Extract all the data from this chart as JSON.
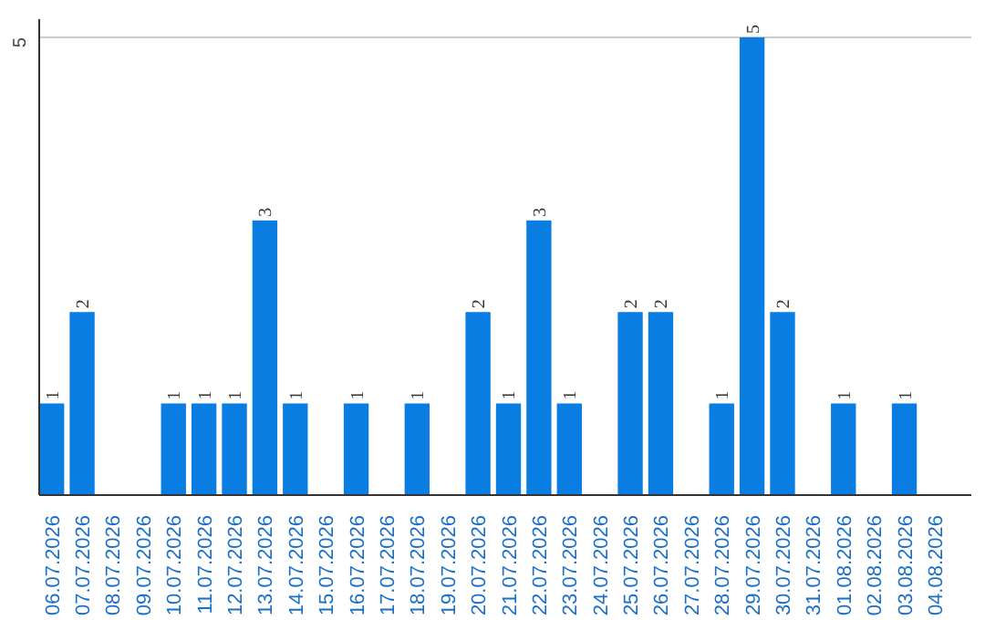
{
  "chart_data": {
    "type": "bar",
    "categories": [
      "06.07.2026",
      "07.07.2026",
      "08.07.2026",
      "09.07.2026",
      "10.07.2026",
      "11.07.2026",
      "12.07.2026",
      "13.07.2026",
      "14.07.2026",
      "15.07.2026",
      "16.07.2026",
      "17.07.2026",
      "18.07.2026",
      "19.07.2026",
      "20.07.2026",
      "21.07.2026",
      "22.07.2026",
      "23.07.2026",
      "24.07.2026",
      "25.07.2026",
      "26.07.2026",
      "27.07.2026",
      "28.07.2026",
      "29.07.2026",
      "30.07.2026",
      "31.07.2026",
      "01.08.2026",
      "02.08.2026",
      "03.08.2026",
      "04.08.2026"
    ],
    "values": [
      1,
      2,
      0,
      0,
      1,
      1,
      1,
      3,
      1,
      0,
      1,
      0,
      1,
      0,
      2,
      1,
      3,
      1,
      0,
      2,
      2,
      0,
      1,
      5,
      2,
      0,
      1,
      0,
      1,
      0
    ],
    "value_labels": [
      "1",
      "2",
      null,
      null,
      "1",
      "1",
      "1",
      "3",
      "1",
      null,
      "1",
      null,
      "1",
      null,
      "2",
      "1",
      "3",
      "1",
      null,
      "2",
      "2",
      null,
      "1",
      "5",
      "2",
      null,
      "1",
      null,
      "1",
      null
    ],
    "color": "#0a7de3",
    "ylim": [
      0,
      5.2
    ],
    "yticks": [
      5
    ],
    "grid": "y"
  }
}
